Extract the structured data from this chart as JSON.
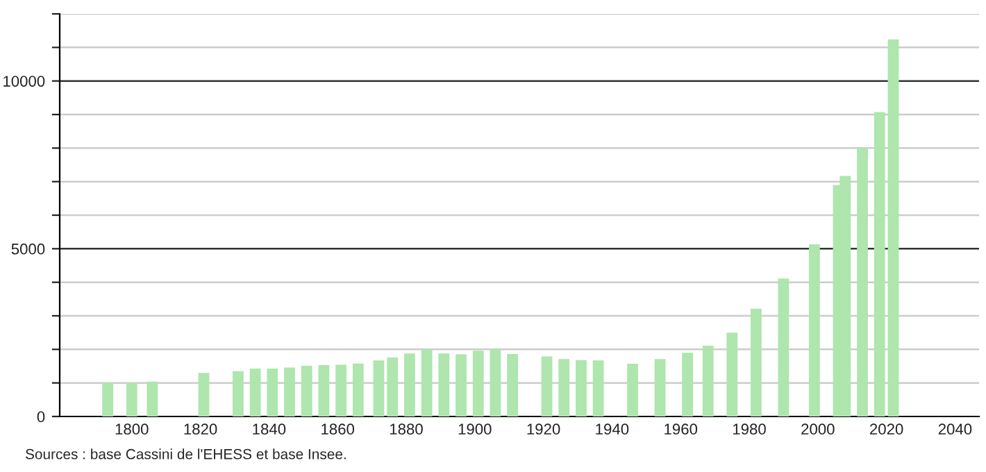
{
  "chart_data": {
    "type": "bar",
    "x": [
      1793,
      1800,
      1806,
      1821,
      1831,
      1836,
      1841,
      1846,
      1851,
      1856,
      1861,
      1866,
      1872,
      1876,
      1881,
      1886,
      1891,
      1896,
      1901,
      1906,
      1911,
      1921,
      1926,
      1931,
      1936,
      1946,
      1954,
      1962,
      1968,
      1975,
      1982,
      1990,
      1999,
      2006,
      2008,
      2013,
      2018,
      2022
    ],
    "values": [
      1000,
      1000,
      1040,
      1300,
      1350,
      1430,
      1430,
      1460,
      1510,
      1530,
      1540,
      1580,
      1670,
      1760,
      1880,
      1990,
      1880,
      1850,
      1960,
      2000,
      1860,
      1790,
      1710,
      1680,
      1670,
      1570,
      1710,
      1900,
      2110,
      2500,
      3210,
      4110,
      5130,
      6900,
      7170,
      8010,
      9070,
      11240
    ],
    "color": "#aee6ad",
    "xlim": [
      1779,
      2047
    ],
    "xticks": [
      1800,
      1820,
      1840,
      1860,
      1880,
      1900,
      1920,
      1940,
      1960,
      1980,
      2000,
      2020,
      2040
    ],
    "ylim": [
      0,
      12000
    ],
    "yticks": [
      0,
      {
        "value": 1000,
        "label": null
      },
      {
        "value": 2000,
        "label": null
      },
      {
        "value": 3000,
        "label": null
      },
      {
        "value": 4000,
        "label": null
      },
      5000,
      {
        "value": 6000,
        "label": null
      },
      {
        "value": 7000,
        "label": null
      },
      {
        "value": 8000,
        "label": null
      },
      {
        "value": 9000,
        "label": null
      },
      10000,
      {
        "value": 11000,
        "label": null
      },
      {
        "value": 12000,
        "label": null
      }
    ],
    "grid": "y",
    "annotations": [
      "Sources : base Cassini de l'EHESS et base Insee."
    ]
  }
}
